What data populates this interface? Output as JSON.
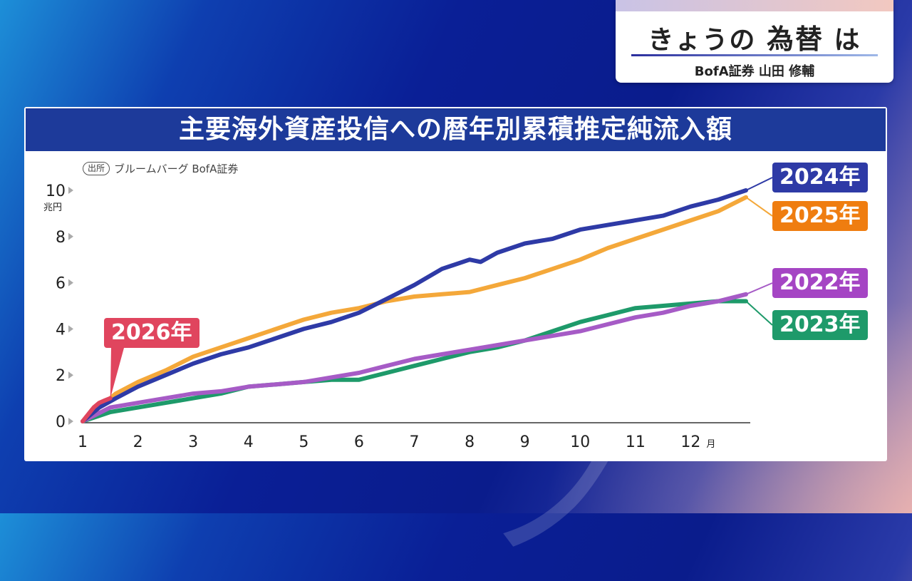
{
  "title_box": {
    "main_prefix": "きょうの",
    "main_em": "為替",
    "main_suffix": "は",
    "subtitle": "BofA証券 山田 修輔"
  },
  "chart_data": {
    "type": "line",
    "title": "主要海外資産投信への暦年別累積推定純流入額",
    "source_badge": "出所",
    "source_text": "ブルームバーグ BofA証券",
    "ylabel": "兆円",
    "xlabel": "月",
    "ylim": [
      0,
      10
    ],
    "yticks": [
      0,
      2,
      4,
      6,
      8,
      10
    ],
    "xlim": [
      1,
      13
    ],
    "xticks": [
      "1",
      "2",
      "3",
      "4",
      "5",
      "6",
      "7",
      "8",
      "9",
      "10",
      "11",
      "12"
    ],
    "series": [
      {
        "name": "2024年",
        "color": "#2e3aa6",
        "x": [
          1,
          1.3,
          1.6,
          2,
          2.5,
          3,
          3.5,
          4,
          4.5,
          5,
          5.5,
          6,
          6.5,
          7,
          7.5,
          8,
          8.2,
          8.5,
          9,
          9.5,
          10,
          10.5,
          11,
          11.5,
          12,
          12.5,
          13
        ],
        "y": [
          0,
          0.6,
          1.0,
          1.5,
          2.0,
          2.5,
          2.9,
          3.2,
          3.6,
          4.0,
          4.3,
          4.7,
          5.3,
          5.9,
          6.6,
          7.0,
          6.9,
          7.3,
          7.7,
          7.9,
          8.3,
          8.5,
          8.7,
          8.9,
          9.3,
          9.6,
          10.0
        ]
      },
      {
        "name": "2025年",
        "color": "#f4a83a",
        "x": [
          1,
          1.3,
          1.6,
          2,
          2.5,
          3,
          3.5,
          4,
          4.5,
          5,
          5.5,
          6,
          6.5,
          7,
          7.5,
          8,
          8.5,
          9,
          9.5,
          10,
          10.5,
          11,
          11.5,
          12,
          12.5,
          13
        ],
        "y": [
          0,
          0.6,
          1.2,
          1.7,
          2.2,
          2.8,
          3.2,
          3.6,
          4.0,
          4.4,
          4.7,
          4.9,
          5.2,
          5.4,
          5.5,
          5.6,
          5.9,
          6.2,
          6.6,
          7.0,
          7.5,
          7.9,
          8.3,
          8.7,
          9.1,
          9.7
        ]
      },
      {
        "name": "2022年",
        "color": "#a65bc6",
        "x": [
          1,
          1.5,
          2,
          2.5,
          3,
          3.5,
          4,
          4.5,
          5,
          5.5,
          6,
          6.5,
          7,
          7.5,
          8,
          8.5,
          9,
          9.5,
          10,
          10.5,
          11,
          11.5,
          12,
          12.5,
          13
        ],
        "y": [
          0,
          0.6,
          0.8,
          1.0,
          1.2,
          1.3,
          1.5,
          1.6,
          1.7,
          1.9,
          2.1,
          2.4,
          2.7,
          2.9,
          3.1,
          3.3,
          3.5,
          3.7,
          3.9,
          4.2,
          4.5,
          4.7,
          5.0,
          5.2,
          5.5
        ]
      },
      {
        "name": "2023年",
        "color": "#1e9a6a",
        "x": [
          1,
          1.5,
          2,
          2.5,
          3,
          3.5,
          4,
          4.5,
          5,
          5.5,
          6,
          6.5,
          7,
          7.5,
          8,
          8.5,
          9,
          9.5,
          10,
          10.5,
          11,
          11.5,
          12,
          12.5,
          13
        ],
        "y": [
          0,
          0.4,
          0.6,
          0.8,
          1.0,
          1.2,
          1.5,
          1.6,
          1.7,
          1.8,
          1.8,
          2.1,
          2.4,
          2.7,
          3.0,
          3.2,
          3.5,
          3.9,
          4.3,
          4.6,
          4.9,
          5.0,
          5.1,
          5.2,
          5.2
        ]
      },
      {
        "name": "2026年",
        "color": "#e0455e",
        "x": [
          1,
          1.1,
          1.2,
          1.3,
          1.4,
          1.5
        ],
        "y": [
          0,
          0.3,
          0.6,
          0.8,
          0.9,
          1.0
        ]
      }
    ]
  }
}
